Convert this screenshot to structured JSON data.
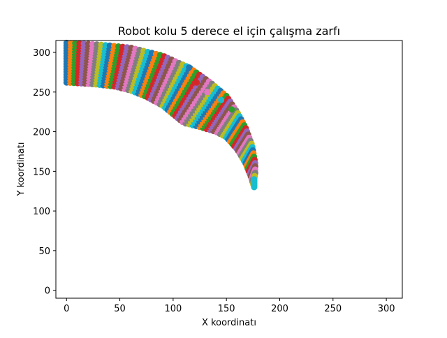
{
  "chart_data": {
    "type": "scatter",
    "title": "Robot kolu 5 derece el için çalışma zarfı",
    "xlabel": "X koordinatı",
    "ylabel": "Y koordinatı",
    "xlim": [
      -10,
      315
    ],
    "ylim": [
      -10,
      315
    ],
    "xticks": [
      0,
      50,
      100,
      150,
      200,
      250,
      300
    ],
    "yticks": [
      0,
      50,
      100,
      150,
      200,
      250,
      300
    ],
    "grid": false,
    "legend": "none",
    "point_colors": [
      "#1f77b4",
      "#ff7f0e",
      "#2ca02c",
      "#d62728",
      "#9467bd",
      "#8c564b",
      "#e377c2",
      "#7f7f7f",
      "#bcbd22",
      "#17becf"
    ],
    "envelope": {
      "outer_boundary": [
        [
          0,
          312
        ],
        [
          30,
          310
        ],
        [
          60,
          306
        ],
        [
          90,
          296
        ],
        [
          115,
          281
        ],
        [
          135,
          262
        ],
        [
          150,
          245
        ],
        [
          160,
          225
        ],
        [
          168,
          205
        ],
        [
          174,
          183
        ],
        [
          177,
          160
        ],
        [
          177,
          148
        ],
        [
          176,
          140
        ]
      ],
      "inner_boundary": [
        [
          0,
          262
        ],
        [
          25,
          260
        ],
        [
          45,
          257
        ],
        [
          60,
          252
        ],
        [
          75,
          244
        ],
        [
          90,
          233
        ],
        [
          100,
          222
        ],
        [
          110,
          211
        ],
        [
          125,
          206
        ],
        [
          140,
          200
        ],
        [
          150,
          193
        ],
        [
          160,
          178
        ],
        [
          168,
          160
        ],
        [
          173,
          143
        ],
        [
          176,
          130
        ]
      ],
      "notch_points": [
        [
          115,
          281
        ],
        [
          122,
          262
        ],
        [
          132,
          250
        ],
        [
          145,
          240
        ],
        [
          155,
          228
        ]
      ]
    }
  }
}
